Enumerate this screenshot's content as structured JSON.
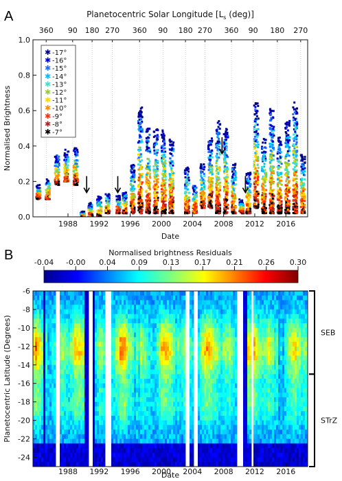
{
  "chart_data": [
    {
      "panel": "A",
      "type": "scatter",
      "top_axis_title_main": "Planetocentric Solar Longitude [L",
      "top_axis_title_sub": "s",
      "top_axis_title_end": " (deg)]",
      "top_ticks": [
        "360",
        "90",
        "180",
        "270",
        "360",
        "90",
        "180",
        "270",
        "360",
        "90",
        "180",
        "270"
      ],
      "top_tick_years": [
        1985.2,
        1988.6,
        1991.1,
        1993.7,
        1997.2,
        2000.2,
        2003.1,
        2005.6,
        2009.0,
        2011.8,
        2014.9,
        2017.9
      ],
      "xlabel": "Date",
      "ylabel": "Normalised Brightness",
      "xlim": [
        1983.5,
        2018.8
      ],
      "ylim": [
        0.0,
        1.0
      ],
      "x_ticks": [
        "1988",
        "1992",
        "1996",
        "2000",
        "2004",
        "2008",
        "2012",
        "2016"
      ],
      "x_tick_values": [
        1988,
        1992,
        1996,
        2000,
        2004,
        2008,
        2012,
        2016
      ],
      "y_ticks": [
        "0.0",
        "0.2",
        "0.4",
        "0.6",
        "0.8",
        "1.0"
      ],
      "y_tick_values": [
        0.0,
        0.2,
        0.4,
        0.6,
        0.8,
        1.0
      ],
      "legend_position": "top-left",
      "legend": [
        {
          "label": "-17°",
          "color": "#00008b"
        },
        {
          "label": "-16°",
          "color": "#0000cd"
        },
        {
          "label": "-15°",
          "color": "#1e6fff"
        },
        {
          "label": "-14°",
          "color": "#00bfff"
        },
        {
          "label": "-13°",
          "color": "#40e0d0"
        },
        {
          "label": "-12°",
          "color": "#9acd32"
        },
        {
          "label": "-11°",
          "color": "#ffd700"
        },
        {
          "label": "-10°",
          "color": "#ff8c00"
        },
        {
          "label": "-9°",
          "color": "#ff3000"
        },
        {
          "label": "-8°",
          "color": "#b22222"
        },
        {
          "label": "-7°",
          "color": "#000000"
        }
      ],
      "arrows_years": [
        1990.4,
        1994.4,
        2007.8,
        2010.8
      ],
      "arrow_levels": [
        0.23,
        0.23,
        0.45,
        0.23
      ],
      "clusters": [
        {
          "year": 1984.2,
          "min": 0.1,
          "max": 0.18
        },
        {
          "year": 1985.4,
          "min": 0.1,
          "max": 0.22
        },
        {
          "year": 1986.6,
          "min": 0.18,
          "max": 0.35
        },
        {
          "year": 1987.8,
          "min": 0.2,
          "max": 0.38
        },
        {
          "year": 1989.0,
          "min": 0.18,
          "max": 0.4
        },
        {
          "year": 1989.9,
          "min": 0.0,
          "max": 0.03
        },
        {
          "year": 1990.9,
          "min": 0.0,
          "max": 0.08
        },
        {
          "year": 1992.0,
          "min": 0.0,
          "max": 0.12
        },
        {
          "year": 1993.1,
          "min": 0.02,
          "max": 0.13
        },
        {
          "year": 1994.5,
          "min": 0.02,
          "max": 0.12
        },
        {
          "year": 1995.3,
          "min": 0.02,
          "max": 0.14
        },
        {
          "year": 1996.3,
          "min": 0.02,
          "max": 0.3
        },
        {
          "year": 1997.3,
          "min": 0.02,
          "max": 0.62
        },
        {
          "year": 1998.3,
          "min": 0.02,
          "max": 0.5
        },
        {
          "year": 1999.3,
          "min": 0.02,
          "max": 0.5
        },
        {
          "year": 2000.3,
          "min": 0.02,
          "max": 0.5
        },
        {
          "year": 2001.3,
          "min": 0.02,
          "max": 0.45
        },
        {
          "year": 2003.3,
          "min": 0.02,
          "max": 0.28
        },
        {
          "year": 2004.3,
          "min": 0.02,
          "max": 0.18
        },
        {
          "year": 2005.3,
          "min": 0.05,
          "max": 0.3
        },
        {
          "year": 2006.3,
          "min": 0.05,
          "max": 0.45
        },
        {
          "year": 2007.3,
          "min": 0.02,
          "max": 0.55
        },
        {
          "year": 2008.3,
          "min": 0.02,
          "max": 0.5
        },
        {
          "year": 2009.3,
          "min": 0.02,
          "max": 0.3
        },
        {
          "year": 2010.3,
          "min": 0.02,
          "max": 0.1
        },
        {
          "year": 2011.2,
          "min": 0.02,
          "max": 0.25
        },
        {
          "year": 2012.2,
          "min": 0.05,
          "max": 0.65
        },
        {
          "year": 2013.2,
          "min": 0.02,
          "max": 0.45
        },
        {
          "year": 2014.2,
          "min": 0.02,
          "max": 0.62
        },
        {
          "year": 2015.2,
          "min": 0.02,
          "max": 0.45
        },
        {
          "year": 2016.2,
          "min": 0.02,
          "max": 0.55
        },
        {
          "year": 2017.2,
          "min": 0.02,
          "max": 0.65
        },
        {
          "year": 2018.2,
          "min": 0.02,
          "max": 0.35
        }
      ]
    },
    {
      "panel": "B",
      "type": "heatmap",
      "colorbar_title": "Normalised brightness Residuals",
      "colorbar_ticks": [
        "-0.04",
        "-0.00",
        "0.04",
        "0.09",
        "0.13",
        "0.17",
        "0.21",
        "0.26",
        "0.30"
      ],
      "colorbar_range": [
        -0.04,
        0.3
      ],
      "xlabel": "Date",
      "ylabel": "Planetocentric Latitude (Degrees)",
      "xlim": [
        1983.5,
        2018.8
      ],
      "ylim": [
        -25,
        -6
      ],
      "x_ticks": [
        "1988",
        "1992",
        "1996",
        "2000",
        "2004",
        "2008",
        "2012",
        "2016"
      ],
      "x_tick_values": [
        1988,
        1992,
        1996,
        2000,
        2004,
        2008,
        2012,
        2016
      ],
      "y_ticks": [
        "-6",
        "-8",
        "-10",
        "-12",
        "-14",
        "-16",
        "-18",
        "-20",
        "-22",
        "-24"
      ],
      "y_tick_values": [
        -6,
        -8,
        -10,
        -12,
        -14,
        -16,
        -18,
        -20,
        -22,
        -24
      ],
      "gaps": [
        [
          1986.3,
          1986.7
        ],
        [
          1990.5,
          1991.0
        ],
        [
          1992.6,
          1993.4
        ],
        [
          2002.9,
          2003.4
        ],
        [
          2004.0,
          2004.6
        ],
        [
          2009.7,
          2010.3
        ],
        [
          2011.3,
          2011.6
        ]
      ],
      "dark_blue_bands": [
        [
          1984.6,
          1985.0
        ],
        [
          1990.0,
          1990.5
        ],
        [
          1991.0,
          1991.4
        ],
        [
          2010.3,
          2010.8
        ]
      ],
      "brackets": [
        {
          "label": "SEB",
          "lat_top": -6,
          "lat_bottom": -15
        },
        {
          "label": "STrZ",
          "lat_top": -15,
          "lat_bottom": -25
        }
      ]
    }
  ]
}
